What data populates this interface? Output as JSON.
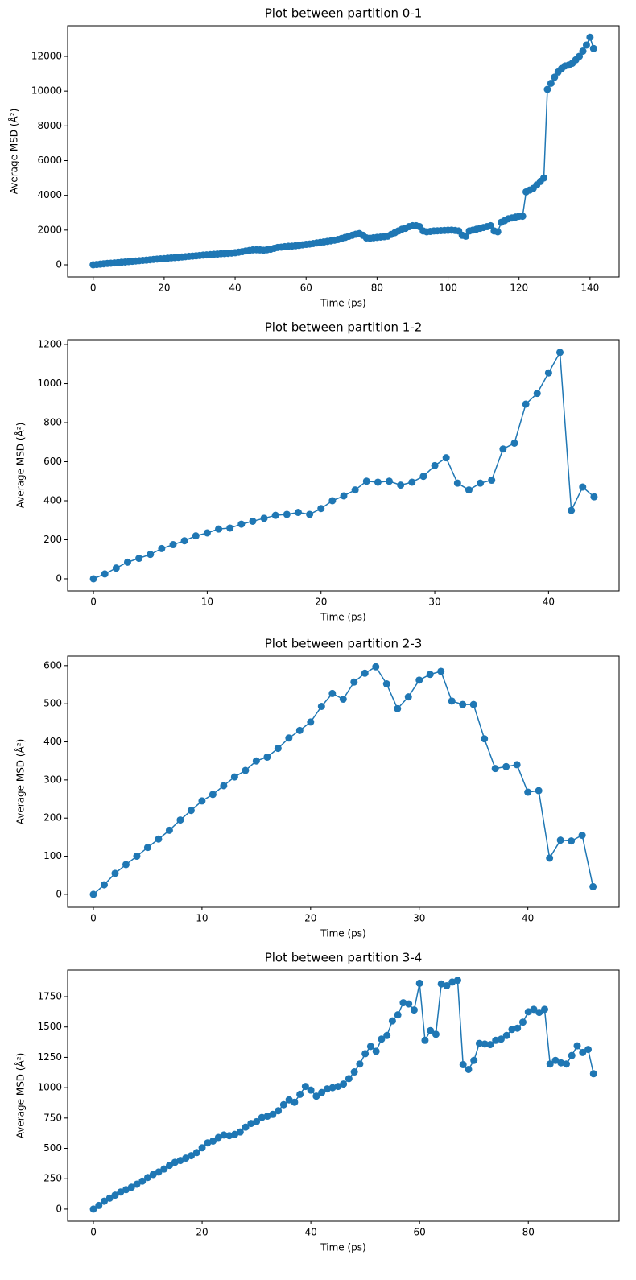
{
  "chart_data": [
    {
      "type": "line",
      "title": "Plot between partition 0-1",
      "xlabel": "Time (ps)",
      "ylabel": "Average MSD (Å²)",
      "color": "#1f77b4",
      "marker": "o",
      "x": [
        0,
        1,
        2,
        3,
        4,
        5,
        6,
        7,
        8,
        9,
        10,
        11,
        12,
        13,
        14,
        15,
        16,
        17,
        18,
        19,
        20,
        21,
        22,
        23,
        24,
        25,
        26,
        27,
        28,
        29,
        30,
        31,
        32,
        33,
        34,
        35,
        36,
        37,
        38,
        39,
        40,
        41,
        42,
        43,
        44,
        45,
        46,
        47,
        48,
        49,
        50,
        51,
        52,
        53,
        54,
        55,
        56,
        57,
        58,
        59,
        60,
        61,
        62,
        63,
        64,
        65,
        66,
        67,
        68,
        69,
        70,
        71,
        72,
        73,
        74,
        75,
        76,
        77,
        78,
        79,
        80,
        81,
        82,
        83,
        84,
        85,
        86,
        87,
        88,
        89,
        90,
        91,
        92,
        93,
        94,
        95,
        96,
        97,
        98,
        99,
        100,
        101,
        102,
        103,
        104,
        105,
        106,
        107,
        108,
        109,
        110,
        111,
        112,
        113,
        114,
        115,
        116,
        117,
        118,
        119,
        120,
        121,
        122,
        123,
        124,
        125,
        126,
        127,
        128,
        129,
        130,
        131,
        132,
        133,
        134,
        135,
        136,
        137,
        138,
        139,
        140,
        141
      ],
      "values": [
        0,
        20,
        40,
        60,
        80,
        95,
        110,
        130,
        150,
        165,
        185,
        200,
        220,
        240,
        255,
        270,
        290,
        310,
        330,
        345,
        360,
        380,
        400,
        415,
        430,
        450,
        470,
        490,
        505,
        520,
        540,
        560,
        575,
        590,
        610,
        620,
        640,
        650,
        660,
        680,
        700,
        730,
        760,
        800,
        830,
        860,
        870,
        860,
        840,
        870,
        900,
        950,
        1000,
        1020,
        1050,
        1070,
        1080,
        1100,
        1120,
        1150,
        1180,
        1200,
        1230,
        1260,
        1290,
        1320,
        1350,
        1380,
        1420,
        1460,
        1520,
        1580,
        1640,
        1700,
        1760,
        1800,
        1700,
        1550,
        1530,
        1560,
        1580,
        1600,
        1620,
        1650,
        1750,
        1850,
        1950,
        2050,
        2100,
        2200,
        2250,
        2250,
        2200,
        1950,
        1900,
        1920,
        1950,
        1960,
        1970,
        1980,
        1990,
        2000,
        1980,
        1950,
        1700,
        1650,
        1950,
        2000,
        2050,
        2100,
        2150,
        2200,
        2250,
        1950,
        1900,
        2450,
        2550,
        2650,
        2700,
        2750,
        2800,
        2800,
        4200,
        4300,
        4400,
        4600,
        4800,
        5000,
        10100,
        10450,
        10800,
        11100,
        11300,
        11450,
        11500,
        11600,
        11800,
        12000,
        12300,
        12650,
        13100,
        12450
      ],
      "xlim": [
        -7.2,
        148.2
      ],
      "ylim": [
        -695,
        13760
      ],
      "xticks": [
        0,
        20,
        40,
        60,
        80,
        100,
        120,
        140
      ],
      "yticks": [
        0,
        2000,
        4000,
        6000,
        8000,
        10000,
        12000
      ]
    },
    {
      "type": "line",
      "title": "Plot between partition 1-2",
      "xlabel": "Time (ps)",
      "ylabel": "Average MSD (Å²)",
      "color": "#1f77b4",
      "marker": "o",
      "x": [
        0,
        1,
        2,
        3,
        4,
        5,
        6,
        7,
        8,
        9,
        10,
        11,
        12,
        13,
        14,
        15,
        16,
        17,
        18,
        19,
        20,
        21,
        22,
        23,
        24,
        25,
        26,
        27,
        28,
        29,
        30,
        31,
        32,
        33,
        34,
        35,
        36,
        37,
        38,
        39,
        40,
        41,
        42,
        43,
        44
      ],
      "values": [
        0,
        25,
        55,
        85,
        105,
        125,
        155,
        175,
        195,
        220,
        235,
        255,
        260,
        280,
        295,
        310,
        325,
        330,
        340,
        330,
        360,
        400,
        425,
        455,
        500,
        495,
        500,
        480,
        495,
        525,
        580,
        620,
        490,
        455,
        490,
        505,
        665,
        695,
        895,
        950,
        1055,
        1160,
        350,
        470,
        420
      ],
      "xlim": [
        -2.27,
        46.2
      ],
      "ylim": [
        -62,
        1225
      ],
      "xticks": [
        0,
        10,
        20,
        30,
        40
      ],
      "yticks": [
        0,
        200,
        400,
        600,
        800,
        1000,
        1200
      ]
    },
    {
      "type": "line",
      "title": "Plot between partition 2-3",
      "xlabel": "Time (ps)",
      "ylabel": "Average MSD (Å²)",
      "color": "#1f77b4",
      "marker": "o",
      "x": [
        0,
        1,
        2,
        3,
        4,
        5,
        6,
        7,
        8,
        9,
        10,
        11,
        12,
        13,
        14,
        15,
        16,
        17,
        18,
        19,
        20,
        21,
        22,
        23,
        24,
        25,
        26,
        27,
        28,
        29,
        30,
        31,
        32,
        33,
        34,
        35,
        36,
        37,
        38,
        39,
        40,
        41,
        42,
        43,
        44,
        45,
        46
      ],
      "values": [
        0,
        25,
        55,
        78,
        100,
        123,
        145,
        168,
        195,
        220,
        245,
        262,
        285,
        308,
        325,
        350,
        360,
        383,
        410,
        430,
        452,
        493,
        527,
        512,
        557,
        580,
        597,
        552,
        487,
        518,
        562,
        577,
        585,
        507,
        498,
        498,
        408,
        330,
        335,
        340,
        268,
        272,
        95,
        142,
        140,
        155,
        20
      ],
      "xlim": [
        -2.37,
        48.4
      ],
      "ylim": [
        -34,
        625
      ],
      "xticks": [
        0,
        10,
        20,
        30,
        40
      ],
      "yticks": [
        0,
        100,
        200,
        300,
        400,
        500,
        600
      ]
    },
    {
      "type": "line",
      "title": "Plot between partition 3-4",
      "xlabel": "Time (ps)",
      "ylabel": "Average MSD (Å²)",
      "color": "#1f77b4",
      "marker": "o",
      "x": [
        0,
        1,
        2,
        3,
        4,
        5,
        6,
        7,
        8,
        9,
        10,
        11,
        12,
        13,
        14,
        15,
        16,
        17,
        18,
        19,
        20,
        21,
        22,
        23,
        24,
        25,
        26,
        27,
        28,
        29,
        30,
        31,
        32,
        33,
        34,
        35,
        36,
        37,
        38,
        39,
        40,
        41,
        42,
        43,
        44,
        45,
        46,
        47,
        48,
        49,
        50,
        51,
        52,
        53,
        54,
        55,
        56,
        57,
        58,
        59,
        60,
        61,
        62,
        63,
        64,
        65,
        66,
        67,
        68,
        69,
        70,
        71,
        72,
        73,
        74,
        75,
        76,
        77,
        78,
        79,
        80,
        81,
        82,
        83,
        84,
        85,
        86,
        87,
        88,
        89,
        90,
        91,
        92
      ],
      "values": [
        0,
        30,
        65,
        90,
        115,
        140,
        160,
        180,
        205,
        230,
        260,
        285,
        305,
        330,
        360,
        385,
        400,
        420,
        440,
        465,
        505,
        545,
        560,
        590,
        610,
        605,
        615,
        635,
        675,
        705,
        720,
        755,
        765,
        780,
        810,
        860,
        900,
        880,
        945,
        1010,
        980,
        930,
        960,
        990,
        1000,
        1010,
        1030,
        1075,
        1130,
        1195,
        1280,
        1340,
        1300,
        1400,
        1430,
        1550,
        1600,
        1700,
        1690,
        1640,
        1860,
        1390,
        1470,
        1440,
        1855,
        1840,
        1870,
        1885,
        1190,
        1150,
        1225,
        1365,
        1360,
        1355,
        1390,
        1400,
        1430,
        1480,
        1490,
        1540,
        1625,
        1645,
        1620,
        1645,
        1195,
        1225,
        1205,
        1195,
        1265,
        1345,
        1290,
        1315,
        1115
      ],
      "xlim": [
        -4.74,
        96.7
      ],
      "ylim": [
        -100,
        1969
      ],
      "xticks": [
        0,
        20,
        40,
        60,
        80
      ],
      "yticks": [
        0,
        250,
        500,
        750,
        1000,
        1250,
        1500,
        1750
      ]
    }
  ]
}
